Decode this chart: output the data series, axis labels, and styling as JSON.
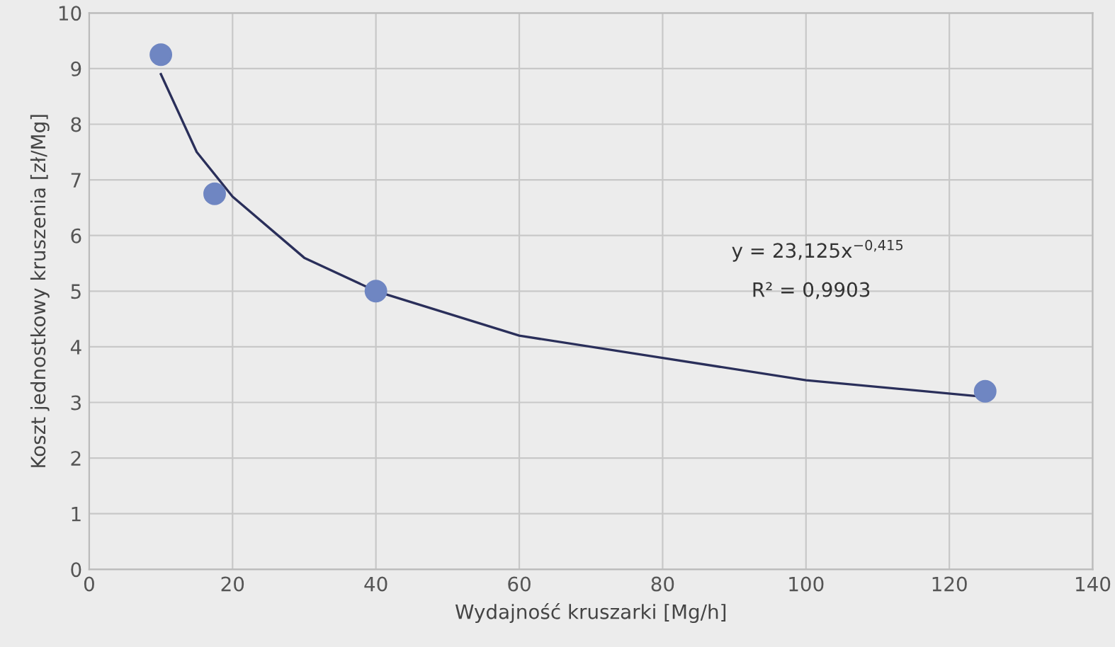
{
  "chart_data": {
    "type": "scatter",
    "xlabel": "Wydajność kruszarki [Mg/h]",
    "ylabel": "Koszt jednostkowy kruszenia [zł/Mg]",
    "series": [
      {
        "color": "#6f86c2",
        "marker": "circle",
        "x": [
          10,
          17.5,
          40,
          125
        ],
        "values": [
          9.25,
          6.75,
          5.0,
          3.2
        ]
      },
      {
        "type": "line",
        "color": "#2a2f5a",
        "marker": "none",
        "x": [
          10,
          15,
          20,
          30,
          40,
          60,
          80,
          100,
          125
        ],
        "values": [
          8.9,
          7.5,
          6.7,
          5.6,
          5.0,
          4.2,
          3.8,
          3.4,
          3.1
        ]
      }
    ],
    "annotations": [
      "y = 23,125x$^{−0,415}$",
      "R² = 0,9903"
    ],
    "xlim": [
      0,
      140
    ],
    "xticks": [
      0,
      20,
      40,
      60,
      80,
      100,
      120,
      140
    ],
    "ylim": [
      0,
      10
    ],
    "yticks": [
      0,
      1,
      2,
      3,
      4,
      5,
      6,
      7,
      8,
      9,
      10
    ],
    "grid": true,
    "legend": false
  }
}
